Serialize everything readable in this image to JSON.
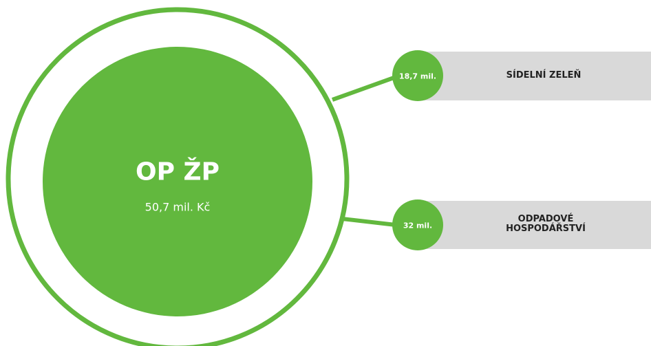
{
  "center": {
    "title": "OP ŽP",
    "amount": "50,7 mil. Kč"
  },
  "branches": [
    {
      "amount": "18,7 mil.",
      "label": "SÍDELNÍ ZELEŇ"
    },
    {
      "amount": "32 mil.",
      "label": "ODPADOVÉ HOSPODÁŘSTVÍ"
    }
  ]
}
